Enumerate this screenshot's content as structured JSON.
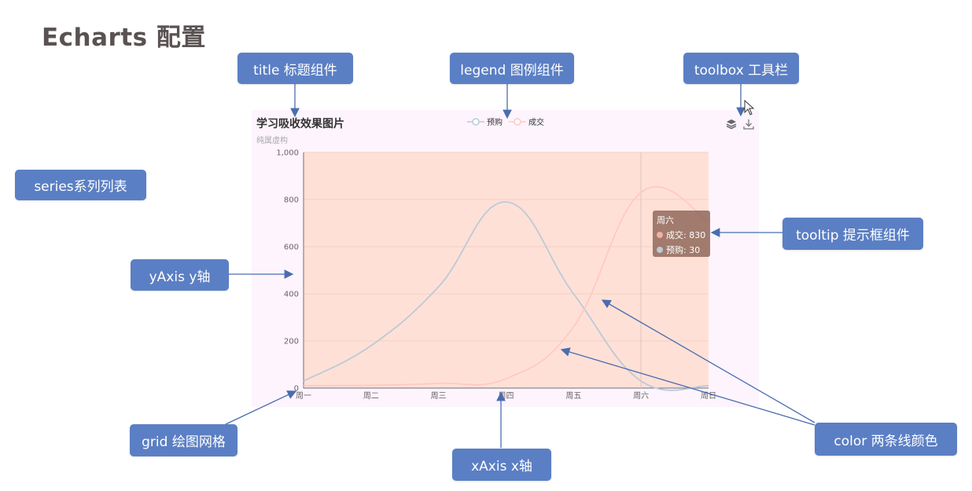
{
  "page": {
    "title": "Echarts 配置"
  },
  "callouts": {
    "title": "title 标题组件",
    "legend": "legend 图例组件",
    "toolbox": "toolbox 工具栏",
    "series": "series系列列表",
    "yaxis": "yAxis y轴",
    "tooltip": "tooltip 提示框组件",
    "grid": "grid 绘图网格",
    "xaxis": "xAxis x轴",
    "color": "color 两条线颜色"
  },
  "chart": {
    "title": "学习吸收效果图片",
    "subtitle": "纯属虚构",
    "toolbox_icons": [
      "stack-icon",
      "download-icon"
    ]
  },
  "tooltip": {
    "header": "周六",
    "rows": [
      {
        "label": "成交: 830",
        "color": "#f2b1a2"
      },
      {
        "label": "预购: 30",
        "color": "#bccad9"
      }
    ]
  },
  "colors": {
    "callout_bg": "#5b7fc4",
    "series_yugou": "#bccad9",
    "series_chengjiao": "#ffc9c4",
    "grid_area": "#ffe0d6",
    "panel_bg": "#fdf4fd"
  },
  "chart_data": {
    "type": "line",
    "smooth": true,
    "title": "学习吸收效果图片",
    "subtitle": "纯属虚构",
    "categories": [
      "周一",
      "周二",
      "周三",
      "周四",
      "周五",
      "周六",
      "周日"
    ],
    "series": [
      {
        "name": "预购",
        "values": [
          30,
          180,
          430,
          790,
          400,
          30,
          10
        ]
      },
      {
        "name": "成交",
        "values": [
          10,
          12,
          20,
          40,
          260,
          830,
          710
        ]
      }
    ],
    "yticks": [
      "0",
      "200",
      "400",
      "600",
      "800",
      "1,000"
    ],
    "ylim": [
      0,
      1000
    ],
    "legend_position": "top-center",
    "grid": true
  }
}
